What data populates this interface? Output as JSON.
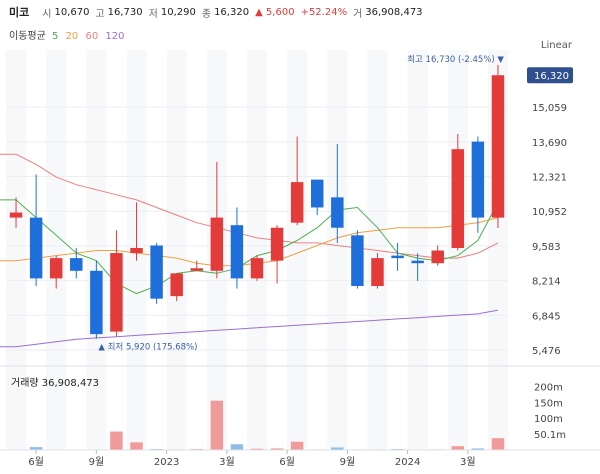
{
  "header": {
    "name": "미코",
    "open_label": "시",
    "open": "10,670",
    "high_label": "고",
    "high": "16,730",
    "low_label": "저",
    "low": "10,290",
    "close_label": "종",
    "close": "16,320",
    "change": "▲ 5,600",
    "change_pct": "+52.24%",
    "volume_label": "거",
    "volume": "36,908,473"
  },
  "moving_avg": {
    "title": "이동평균",
    "p5": "5",
    "p20": "20",
    "p60": "60",
    "p120": "120",
    "colors": {
      "p5": "#4caf50",
      "p20": "#f0a040",
      "p60": "#ef7e7e",
      "p120": "#9a6fd4"
    }
  },
  "scale_mode": "Linear",
  "colors": {
    "up": "#e33a3a",
    "down": "#1e6fd9",
    "up_vol": "#f09a9a",
    "down_vol": "#8dbde8"
  },
  "chart_data": {
    "type": "candlestick",
    "y_ticks": [
      "15,059",
      "13,690",
      "12,321",
      "10,952",
      "9,583",
      "8,214",
      "6,845",
      "5,476"
    ],
    "y_tick_values": [
      15059,
      13690,
      12321,
      10952,
      9583,
      8214,
      6845,
      5476
    ],
    "ylim": [
      5000,
      17000
    ],
    "x_ticks": [
      "6월",
      "9월",
      "2023",
      "3월",
      "6월",
      "9월",
      "2024",
      "3월"
    ],
    "x_tick_index": [
      1,
      4,
      7.5,
      10.5,
      13.5,
      16.5,
      19.5,
      22.5
    ],
    "last_price_label": "16,320",
    "high_annotation": "최고 16,730 (-2.45%) ▼",
    "low_annotation": "▲ 최저 5,920 (175.68%)",
    "candles": [
      {
        "o": 10700,
        "h": 11500,
        "l": 10300,
        "c": 10900
      },
      {
        "o": 10700,
        "h": 12400,
        "l": 8000,
        "c": 8300
      },
      {
        "o": 8300,
        "h": 9200,
        "l": 7900,
        "c": 9100
      },
      {
        "o": 9100,
        "h": 9500,
        "l": 8300,
        "c": 8600
      },
      {
        "o": 8600,
        "h": 9000,
        "l": 5920,
        "c": 6100
      },
      {
        "o": 6200,
        "h": 10200,
        "l": 6000,
        "c": 9300
      },
      {
        "o": 9300,
        "h": 11300,
        "l": 9000,
        "c": 9500
      },
      {
        "o": 9600,
        "h": 9700,
        "l": 7300,
        "c": 7500
      },
      {
        "o": 7600,
        "h": 8500,
        "l": 7400,
        "c": 8500
      },
      {
        "o": 8600,
        "h": 9000,
        "l": 8600,
        "c": 8700
      },
      {
        "o": 8600,
        "h": 12900,
        "l": 8300,
        "c": 10700
      },
      {
        "o": 10400,
        "h": 11100,
        "l": 7900,
        "c": 8300
      },
      {
        "o": 8300,
        "h": 9200,
        "l": 8200,
        "c": 9100
      },
      {
        "o": 9000,
        "h": 10400,
        "l": 8100,
        "c": 10300
      },
      {
        "o": 10500,
        "h": 13900,
        "l": 10400,
        "c": 12100
      },
      {
        "o": 12200,
        "h": 12200,
        "l": 10800,
        "c": 11100
      },
      {
        "o": 11500,
        "h": 13600,
        "l": 9700,
        "c": 10300
      },
      {
        "o": 10000,
        "h": 10200,
        "l": 7900,
        "c": 8000
      },
      {
        "o": 8000,
        "h": 9300,
        "l": 7900,
        "c": 9100
      },
      {
        "o": 9200,
        "h": 9700,
        "l": 8600,
        "c": 9100
      },
      {
        "o": 9000,
        "h": 9300,
        "l": 8200,
        "c": 8900
      },
      {
        "o": 8900,
        "h": 9600,
        "l": 8800,
        "c": 9400
      },
      {
        "o": 9500,
        "h": 14000,
        "l": 9400,
        "c": 13400
      },
      {
        "o": 13700,
        "h": 13900,
        "l": 10100,
        "c": 10700
      },
      {
        "o": 10700,
        "h": 16730,
        "l": 10290,
        "c": 16320
      }
    ],
    "ma5": [
      11400,
      10700,
      10000,
      9300,
      9000,
      8100,
      7700,
      8000,
      8500,
      8600,
      8500,
      8700,
      9200,
      9400,
      9800,
      10300,
      11000,
      11100,
      10300,
      9300,
      9100,
      9000,
      9200,
      9800,
      11300
    ],
    "ma20": [
      9000,
      9100,
      9200,
      9300,
      9400,
      9400,
      9300,
      9200,
      9100,
      8900,
      8800,
      8800,
      8900,
      9000,
      9300,
      9600,
      9900,
      10100,
      10200,
      10300,
      10300,
      10300,
      10400,
      10500,
      10700
    ],
    "ma60": [
      13200,
      12800,
      12300,
      12000,
      11800,
      11600,
      11400,
      11100,
      10800,
      10500,
      10300,
      10100,
      9900,
      9800,
      9700,
      9700,
      9600,
      9500,
      9400,
      9300,
      9200,
      9100,
      9100,
      9300,
      9700
    ],
    "ma120": [
      5600,
      5700,
      5800,
      5900,
      5950,
      6000,
      6050,
      6100,
      6150,
      6200,
      6250,
      6300,
      6350,
      6400,
      6450,
      6500,
      6550,
      6600,
      6650,
      6700,
      6750,
      6800,
      6850,
      6900,
      7050
    ],
    "volume_label": "거래량 36,908,473",
    "volume_ticks": [
      "200m",
      "150m",
      "100m",
      "50.1m"
    ],
    "volume_tick_values": [
      200,
      150,
      100,
      50.1
    ],
    "volume_max": 220,
    "volume": [
      1,
      9,
      1,
      1,
      1,
      58,
      24,
      3,
      2,
      3,
      155,
      18,
      4,
      5,
      26,
      2,
      8,
      2,
      2,
      3,
      1,
      2,
      12,
      5,
      37
    ]
  }
}
